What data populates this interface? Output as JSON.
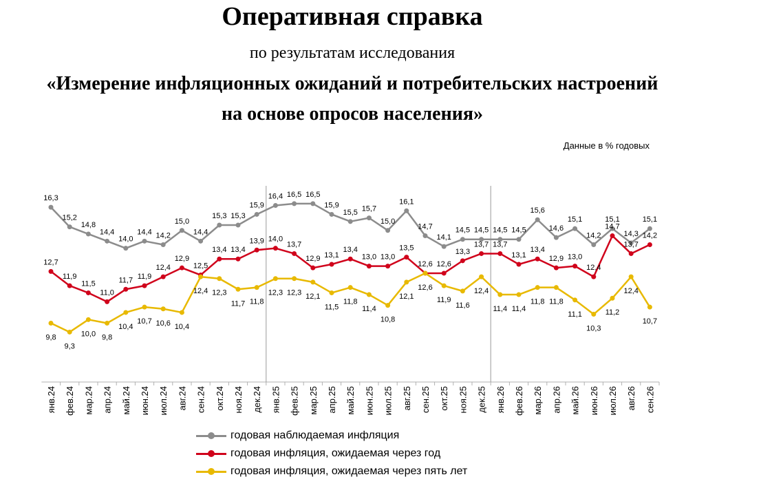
{
  "header": {
    "title": "Оперативная справка",
    "subtitle": "по результатам исследования",
    "study_line1": "«Измерение инфляционных ожиданий и потребительских настроений",
    "study_line2": "на основе опросов населения»",
    "units_note": "Данные в % годовых"
  },
  "chart_data": {
    "type": "line",
    "title": "",
    "xlabel": "",
    "ylabel": "",
    "categories": [
      "янв.24",
      "фев.24",
      "мар.24",
      "апр.24",
      "май.24",
      "июн.24",
      "июл.24",
      "авг.24",
      "сен.24",
      "окт.24",
      "ноя.24",
      "дек.24",
      "янв.25",
      "фев.25",
      "мар.25",
      "апр.25",
      "май.25",
      "июн.25",
      "июл.25",
      "авг.25",
      "сен.25",
      "окт.25",
      "ноя.25",
      "дек.25",
      "янв.26",
      "фев.26",
      "мар.26",
      "апр.26",
      "май.26",
      "июн.26",
      "июл.26",
      "авг.26",
      "сен.26"
    ],
    "ylim": [
      6.5,
      17.5
    ],
    "grid": false,
    "legend_position": "bottom",
    "separators_after": [
      "дек.24",
      "дек.25"
    ],
    "series": [
      {
        "name": "годовая наблюдаемая  инфляция",
        "color": "#8c8c8c",
        "label_side": "above",
        "values": [
          16.3,
          15.2,
          14.8,
          14.4,
          14.0,
          14.4,
          14.2,
          15.0,
          14.4,
          15.3,
          15.3,
          15.9,
          16.4,
          16.5,
          16.5,
          15.9,
          15.5,
          15.7,
          15.0,
          16.1,
          14.7,
          14.1,
          14.5,
          14.5,
          14.5,
          14.5,
          15.6,
          14.6,
          15.1,
          14.2,
          15.1,
          14.3,
          15.1
        ]
      },
      {
        "name": "годовая инфляция,  ожидаемая  через год",
        "color": "#d0021b",
        "label_side": "above",
        "values": [
          12.7,
          11.9,
          11.5,
          11.0,
          11.7,
          11.9,
          12.4,
          12.9,
          12.5,
          13.4,
          13.4,
          13.9,
          14.0,
          13.7,
          12.9,
          13.1,
          13.4,
          13.0,
          13.0,
          13.5,
          12.6,
          12.6,
          13.3,
          13.7,
          13.7,
          13.1,
          13.4,
          12.9,
          13.0,
          12.4,
          14.7,
          13.7,
          14.2
        ]
      },
      {
        "name": "годовая инфляция,  ожидаемая  через пять лет",
        "color": "#e8b900",
        "label_side": "below",
        "values": [
          9.8,
          9.3,
          10.0,
          9.8,
          10.4,
          10.7,
          10.6,
          10.4,
          12.4,
          12.3,
          11.7,
          11.8,
          12.3,
          12.3,
          12.1,
          11.5,
          11.8,
          11.4,
          10.8,
          12.1,
          12.6,
          11.9,
          11.6,
          12.4,
          11.4,
          11.4,
          11.8,
          11.8,
          11.1,
          10.3,
          11.2,
          12.4,
          10.7
        ]
      }
    ]
  }
}
